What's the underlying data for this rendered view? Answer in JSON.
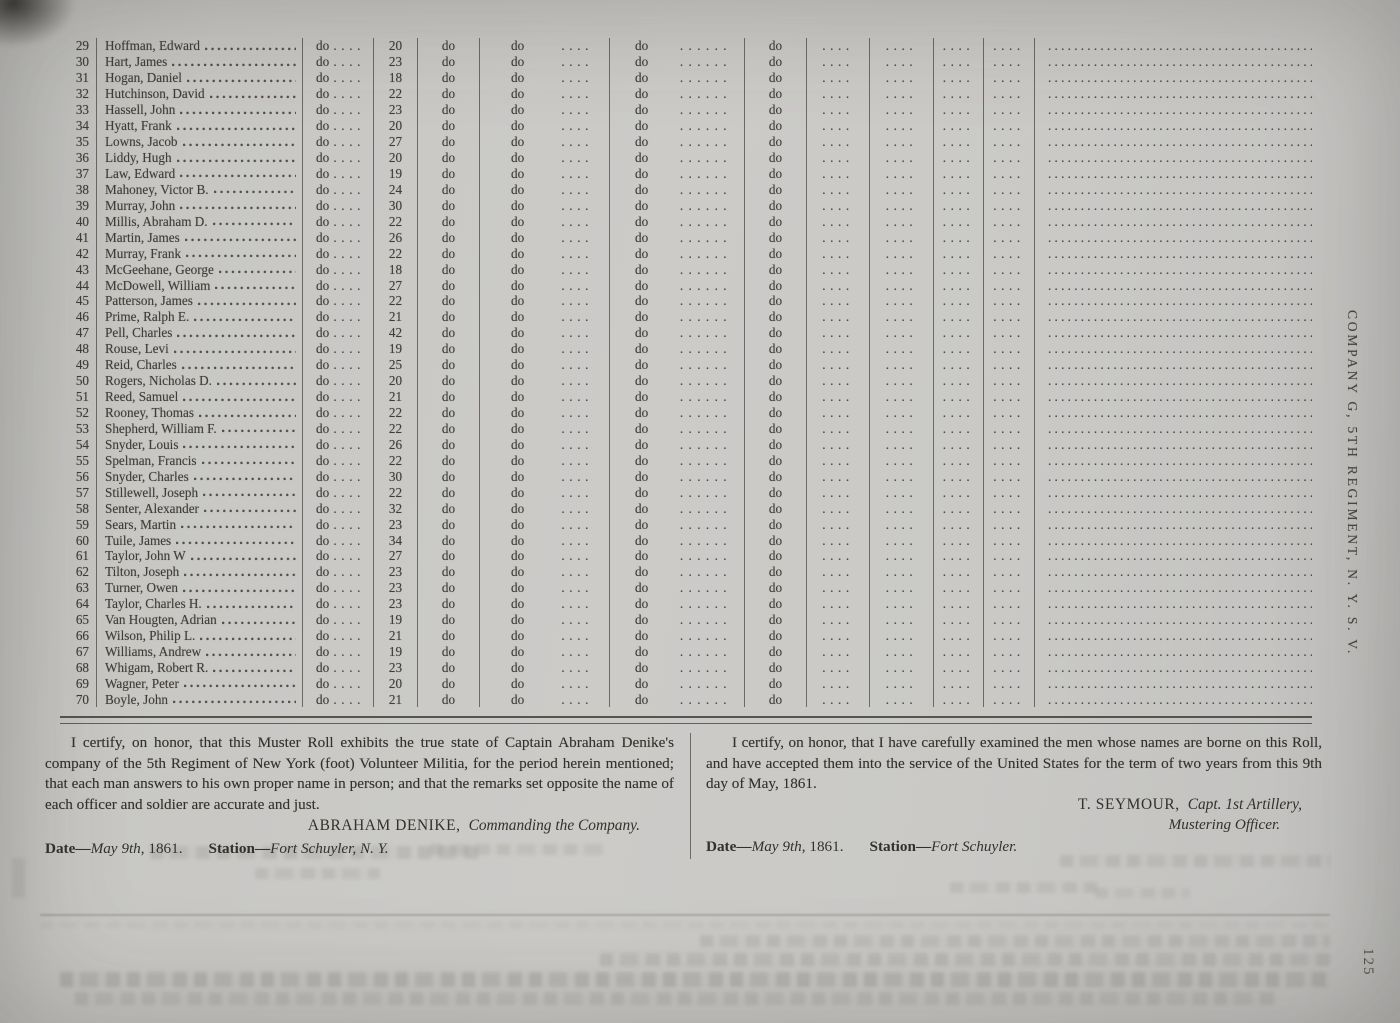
{
  "page": {
    "side_label": "COMPANY G, 5TH REGIMENT, N. Y. S. V.",
    "page_number": "125"
  },
  "table": {
    "ditto": "do",
    "dots4": "....",
    "dots6": "......",
    "remarks_dots": "................................................",
    "rows": [
      {
        "no": "29",
        "name": "Hoffman, Edward",
        "age": "20"
      },
      {
        "no": "30",
        "name": "Hart, James",
        "age": "23"
      },
      {
        "no": "31",
        "name": "Hogan, Daniel",
        "age": "18"
      },
      {
        "no": "32",
        "name": "Hutchinson, David",
        "age": "22"
      },
      {
        "no": "33",
        "name": "Hassell, John",
        "age": "23"
      },
      {
        "no": "34",
        "name": "Hyatt, Frank",
        "age": "20"
      },
      {
        "no": "35",
        "name": "Lowns, Jacob",
        "age": "27"
      },
      {
        "no": "36",
        "name": "Liddy, Hugh",
        "age": "20"
      },
      {
        "no": "37",
        "name": "Law, Edward",
        "age": "19"
      },
      {
        "no": "38",
        "name": "Mahoney, Victor B.",
        "age": "24"
      },
      {
        "no": "39",
        "name": "Murray, John",
        "age": "30"
      },
      {
        "no": "40",
        "name": "Millis, Abraham D.",
        "age": "22"
      },
      {
        "no": "41",
        "name": "Martin, James",
        "age": "26"
      },
      {
        "no": "42",
        "name": "Murray, Frank",
        "age": "22"
      },
      {
        "no": "43",
        "name": "McGeehane, George",
        "age": "18"
      },
      {
        "no": "44",
        "name": "McDowell, William",
        "age": "27"
      },
      {
        "no": "45",
        "name": "Patterson, James",
        "age": "22"
      },
      {
        "no": "46",
        "name": "Prime, Ralph E.",
        "age": "21"
      },
      {
        "no": "47",
        "name": "Pell, Charles",
        "age": "42"
      },
      {
        "no": "48",
        "name": "Rouse, Levi",
        "age": "19"
      },
      {
        "no": "49",
        "name": "Reid, Charles",
        "age": "25"
      },
      {
        "no": "50",
        "name": "Rogers, Nicholas D.",
        "age": "20"
      },
      {
        "no": "51",
        "name": "Reed, Samuel",
        "age": "21"
      },
      {
        "no": "52",
        "name": "Rooney, Thomas",
        "age": "22"
      },
      {
        "no": "53",
        "name": "Shepherd, William F.",
        "age": "22"
      },
      {
        "no": "54",
        "name": "Snyder, Louis",
        "age": "26"
      },
      {
        "no": "55",
        "name": "Spelman, Francis",
        "age": "22"
      },
      {
        "no": "56",
        "name": "Snyder, Charles",
        "age": "30"
      },
      {
        "no": "57",
        "name": "Stillewell, Joseph",
        "age": "22"
      },
      {
        "no": "58",
        "name": "Senter, Alexander",
        "age": "32"
      },
      {
        "no": "59",
        "name": "Sears, Martin",
        "age": "23"
      },
      {
        "no": "60",
        "name": "Tuile, James",
        "age": "34"
      },
      {
        "no": "61",
        "name": "Taylor, John W",
        "age": "27"
      },
      {
        "no": "62",
        "name": "Tilton, Joseph",
        "age": "23"
      },
      {
        "no": "63",
        "name": "Turner, Owen",
        "age": "23"
      },
      {
        "no": "64",
        "name": "Taylor, Charles H.",
        "age": "23"
      },
      {
        "no": "65",
        "name": "Van Hougten, Adrian",
        "age": "19"
      },
      {
        "no": "66",
        "name": "Wilson, Philip L.",
        "age": "21"
      },
      {
        "no": "67",
        "name": "Williams, Andrew",
        "age": "19"
      },
      {
        "no": "68",
        "name": "Whigam, Robert R.",
        "age": "23"
      },
      {
        "no": "69",
        "name": "Wagner, Peter",
        "age": "20"
      },
      {
        "no": "70",
        "name": "Boyle, John",
        "age": "21"
      }
    ]
  },
  "certifications": {
    "left": {
      "body": "I certify, on honor, that this Muster Roll exhibits the true state of Captain Abraham Denike's company of the 5th Regiment of New York (foot) Volunteer Militia, for the period herein mentioned; that each man answers to his own proper name in person; and that the remarks set opposite the name of each officer and soldier are accurate and just.",
      "signature_name": "ABRAHAM DENIKE,",
      "signature_title": "Commanding the Company.",
      "date_label": "Date—",
      "date_value": "May 9th",
      "date_suffix": ", 1861.",
      "station_label": "Station—",
      "station_value": "Fort Schuyler, N. Y."
    },
    "right": {
      "body": "I certify, on honor, that I have carefully examined the men whose names are borne on this Roll, and have accepted them into the service of the United States for the term of two years from this 9th day of May, 1861.",
      "signature_name": "T. SEYMOUR,",
      "signature_title": "Capt. 1st Artillery,",
      "signature_title2": "Mustering Officer.",
      "date_label": "Date—",
      "date_value": "May 9th",
      "date_suffix": ", 1861.",
      "station_label": "Station—",
      "station_value": "Fort Schuyler."
    }
  }
}
